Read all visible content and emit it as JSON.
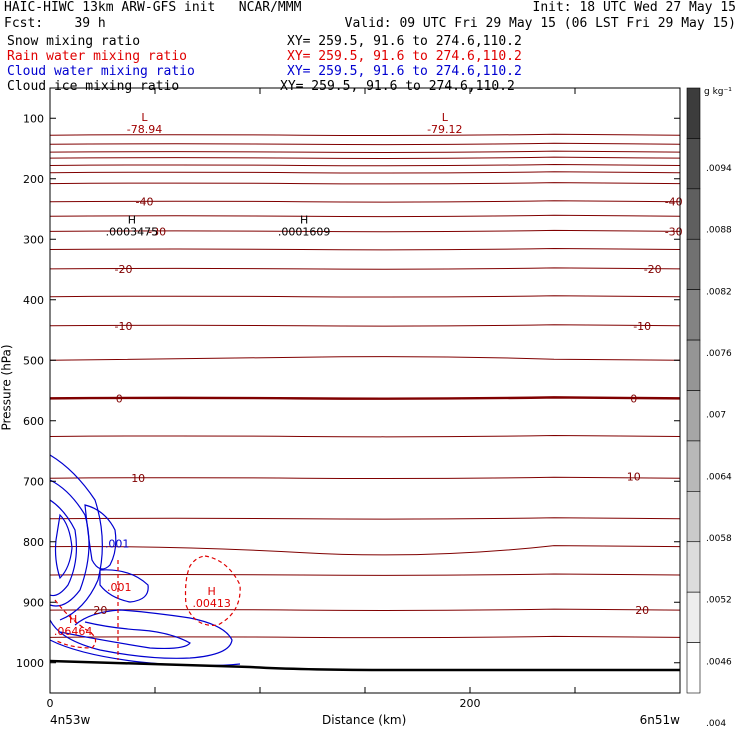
{
  "header": {
    "line1_left": "HAIC-HIWC 13km ARW-GFS init   NCAR/MMM",
    "line1_right": "Init: 18 UTC Wed 27 May 15",
    "fcst_label": "Fcst:    39 h",
    "valid": "Valid: 09 UTC Fri 29 May 15 (06 LST Fri 29 May 15)"
  },
  "fields": [
    {
      "name": "Snow mixing ratio",
      "xy": "XY= 259.5, 91.6 to 274.6,110.2",
      "color": "#000000"
    },
    {
      "name": "Rain water mixing ratio",
      "xy": "XY= 259.5, 91.6 to 274.6,110.2",
      "color": "#e00000"
    },
    {
      "name": "Cloud water mixing ratio",
      "xy": "XY= 259.5, 91.6 to 274.6,110.2",
      "color": "#0000d0"
    },
    {
      "name": "Cloud ice mixing ratio",
      "xy": "XY= 259.5, 91.6 to 274.6,110.2",
      "color": "#000000"
    }
  ],
  "chart_data": {
    "type": "line",
    "xlabel": "Distance (km)",
    "ylabel": "Pressure (hPa)",
    "x_ticks": [
      "0",
      "200"
    ],
    "y_ticks": [
      100,
      200,
      300,
      400,
      500,
      600,
      700,
      800,
      900,
      1000
    ],
    "xlim": [
      0,
      300
    ],
    "ylim": [
      1050,
      50
    ],
    "endpoints": {
      "left": "4n53w",
      "right": "6n51w"
    },
    "colorbar": {
      "unit": "g kg⁻¹",
      "ticks": [
        ".0094",
        ".0088",
        ".0082",
        ".0076",
        ".007",
        ".0064",
        ".0058",
        ".0052",
        ".0046",
        ".004"
      ]
    },
    "temperature_labels": [
      {
        "value": "-40",
        "x": 45,
        "p": 238
      },
      {
        "value": "-40",
        "x": 297,
        "p": 238
      },
      {
        "value": "-30",
        "x": 51,
        "p": 287
      },
      {
        "value": "-30",
        "x": 297,
        "p": 287
      },
      {
        "value": "-20",
        "x": 35,
        "p": 349
      },
      {
        "value": "-20",
        "x": 287,
        "p": 349
      },
      {
        "value": "-10",
        "x": 35,
        "p": 443
      },
      {
        "value": "-10",
        "x": 282,
        "p": 443
      },
      {
        "value": "0",
        "x": 33,
        "p": 563
      },
      {
        "value": "0",
        "x": 278,
        "p": 563
      },
      {
        "value": "10",
        "x": 42,
        "p": 695
      },
      {
        "value": "10",
        "x": 278,
        "p": 692
      },
      {
        "value": "20",
        "x": 24,
        "p": 913
      },
      {
        "value": "20",
        "x": 282,
        "p": 913
      }
    ],
    "extrema": [
      {
        "kind": "L",
        "value": "-78.94",
        "x": 45,
        "p": 108,
        "color": "#a00000"
      },
      {
        "kind": "L",
        "value": "-79.12",
        "x": 188,
        "p": 108,
        "color": "#a00000"
      },
      {
        "kind": "H",
        "value": ".0003475",
        "x": 39,
        "p": 277,
        "color": "#000000"
      },
      {
        "kind": "H",
        "value": ".0001609",
        "x": 121,
        "p": 277,
        "color": "#000000"
      },
      {
        "kind": "H",
        "value": ".00413",
        "x": 77,
        "p": 891,
        "color": "#e00000"
      },
      {
        "kind": "H",
        "value": ".06464",
        "x": 11,
        "p": 938,
        "color": "#e00000"
      }
    ],
    "contour_labels": [
      {
        "value": ".001",
        "x": 32,
        "p": 803,
        "color": "#0000d0"
      },
      {
        "value": ".001",
        "x": 33,
        "p": 875,
        "color": "#e00000"
      }
    ],
    "isotherm_pressures": [
      128,
      143,
      156,
      166,
      178,
      190,
      208,
      238,
      262,
      287,
      317,
      349,
      395,
      443,
      500,
      563,
      626,
      695,
      762,
      808,
      855,
      913,
      958
    ]
  }
}
